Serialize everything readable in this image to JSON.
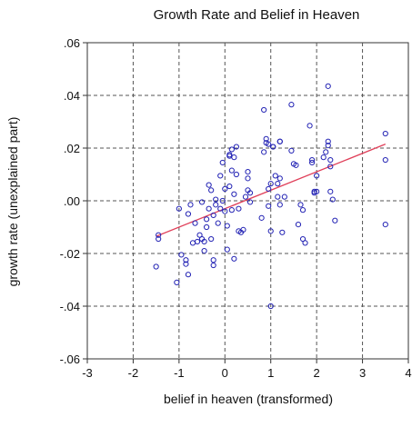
{
  "chart_data": {
    "type": "scatter",
    "title": "Growth Rate and Belief in Heaven",
    "xlabel": "belief in heaven (transformed)",
    "ylabel": "growth rate (unexplained part)",
    "xlim": [
      -3,
      4
    ],
    "ylim": [
      -0.06,
      0.06
    ],
    "xticks": [
      -3,
      -2,
      -1,
      0,
      1,
      2,
      3,
      4
    ],
    "xtick_labels": [
      "-3",
      "-2",
      "-1",
      "0",
      "1",
      "2",
      "3",
      "4"
    ],
    "yticks": [
      -0.06,
      -0.04,
      -0.02,
      0.0,
      0.02,
      0.04,
      0.06
    ],
    "ytick_labels": [
      "-.06",
      "-.04",
      "-.02",
      ".00",
      ".02",
      ".04",
      ".06"
    ],
    "grid": true,
    "grid_style": "dashed",
    "marker_color": "#2323b4",
    "fit_line_color": "#e0405a",
    "fit_line": {
      "x": [
        -1.5,
        3.5
      ],
      "y": [
        -0.0135,
        0.0215
      ]
    },
    "points": [
      [
        -1.5,
        -0.025
      ],
      [
        -1.45,
        -0.013
      ],
      [
        -1.45,
        -0.0145
      ],
      [
        -1.05,
        -0.031
      ],
      [
        -1.0,
        -0.003
      ],
      [
        -0.95,
        -0.0205
      ],
      [
        -0.85,
        -0.024
      ],
      [
        -0.85,
        -0.0225
      ],
      [
        -0.8,
        -0.028
      ],
      [
        -0.8,
        -0.005
      ],
      [
        -0.75,
        -0.0015
      ],
      [
        -0.7,
        -0.016
      ],
      [
        -0.65,
        -0.0085
      ],
      [
        -0.6,
        -0.0155
      ],
      [
        -0.55,
        -0.013
      ],
      [
        -0.5,
        -0.0005
      ],
      [
        -0.5,
        -0.0145
      ],
      [
        -0.45,
        -0.019
      ],
      [
        -0.45,
        -0.0155
      ],
      [
        -0.4,
        -0.007
      ],
      [
        -0.4,
        -0.01
      ],
      [
        -0.35,
        0.006
      ],
      [
        -0.35,
        -0.003
      ],
      [
        -0.3,
        -0.0145
      ],
      [
        -0.3,
        0.004
      ],
      [
        -0.25,
        -0.0225
      ],
      [
        -0.25,
        -0.0245
      ],
      [
        -0.25,
        -0.0055
      ],
      [
        -0.2,
        -0.0015
      ],
      [
        -0.2,
        0.0005
      ],
      [
        -0.15,
        -0.0085
      ],
      [
        -0.1,
        0.0095
      ],
      [
        -0.1,
        -0.003
      ],
      [
        -0.05,
        0.0
      ],
      [
        -0.05,
        0.0145
      ],
      [
        0.0,
        -0.004
      ],
      [
        0.0,
        0.0045
      ],
      [
        0.05,
        -0.0095
      ],
      [
        0.05,
        -0.0185
      ],
      [
        0.1,
        0.0175
      ],
      [
        0.1,
        0.017
      ],
      [
        0.1,
        0.0055
      ],
      [
        0.15,
        0.0195
      ],
      [
        0.15,
        0.0115
      ],
      [
        0.15,
        -0.0035
      ],
      [
        0.2,
        0.0165
      ],
      [
        0.2,
        -0.022
      ],
      [
        0.2,
        0.0025
      ],
      [
        0.25,
        0.0205
      ],
      [
        0.25,
        0.01
      ],
      [
        0.3,
        -0.0115
      ],
      [
        0.3,
        -0.003
      ],
      [
        0.35,
        -0.012
      ],
      [
        0.4,
        -0.011
      ],
      [
        0.45,
        0.0015
      ],
      [
        0.5,
        0.011
      ],
      [
        0.5,
        0.0085
      ],
      [
        0.5,
        0.004
      ],
      [
        0.55,
        0.003
      ],
      [
        0.55,
        -0.0005
      ],
      [
        0.8,
        -0.0065
      ],
      [
        0.85,
        0.0345
      ],
      [
        0.85,
        0.0185
      ],
      [
        0.9,
        0.022
      ],
      [
        0.9,
        0.0235
      ],
      [
        0.95,
        0.0215
      ],
      [
        0.95,
        0.0045
      ],
      [
        0.95,
        -0.002
      ],
      [
        1.0,
        -0.0115
      ],
      [
        1.0,
        0.0065
      ],
      [
        1.0,
        -0.04
      ],
      [
        1.05,
        0.0205
      ],
      [
        1.05,
        0.0205
      ],
      [
        1.1,
        0.0095
      ],
      [
        1.15,
        0.0015
      ],
      [
        1.15,
        0.0065
      ],
      [
        1.2,
        0.0085
      ],
      [
        1.2,
        0.0225
      ],
      [
        1.2,
        0.0225
      ],
      [
        1.2,
        -0.0015
      ],
      [
        1.25,
        -0.012
      ],
      [
        1.3,
        0.0015
      ],
      [
        1.45,
        0.0365
      ],
      [
        1.45,
        0.019
      ],
      [
        1.5,
        0.014
      ],
      [
        1.55,
        0.0135
      ],
      [
        1.6,
        -0.009
      ],
      [
        1.65,
        -0.0015
      ],
      [
        1.7,
        -0.0035
      ],
      [
        1.7,
        -0.0145
      ],
      [
        1.75,
        -0.016
      ],
      [
        1.85,
        0.0285
      ],
      [
        1.9,
        0.0155
      ],
      [
        1.9,
        0.0145
      ],
      [
        1.95,
        0.0035
      ],
      [
        1.95,
        0.003
      ],
      [
        2.0,
        0.0095
      ],
      [
        2.0,
        0.0035
      ],
      [
        2.15,
        0.0165
      ],
      [
        2.2,
        0.0185
      ],
      [
        2.25,
        0.0435
      ],
      [
        2.25,
        0.0225
      ],
      [
        2.25,
        0.021
      ],
      [
        2.3,
        0.0035
      ],
      [
        2.3,
        0.013
      ],
      [
        2.3,
        0.0155
      ],
      [
        2.35,
        0.0005
      ],
      [
        2.4,
        -0.0075
      ],
      [
        3.5,
        0.0255
      ],
      [
        3.5,
        0.0155
      ],
      [
        3.5,
        -0.009
      ]
    ]
  }
}
